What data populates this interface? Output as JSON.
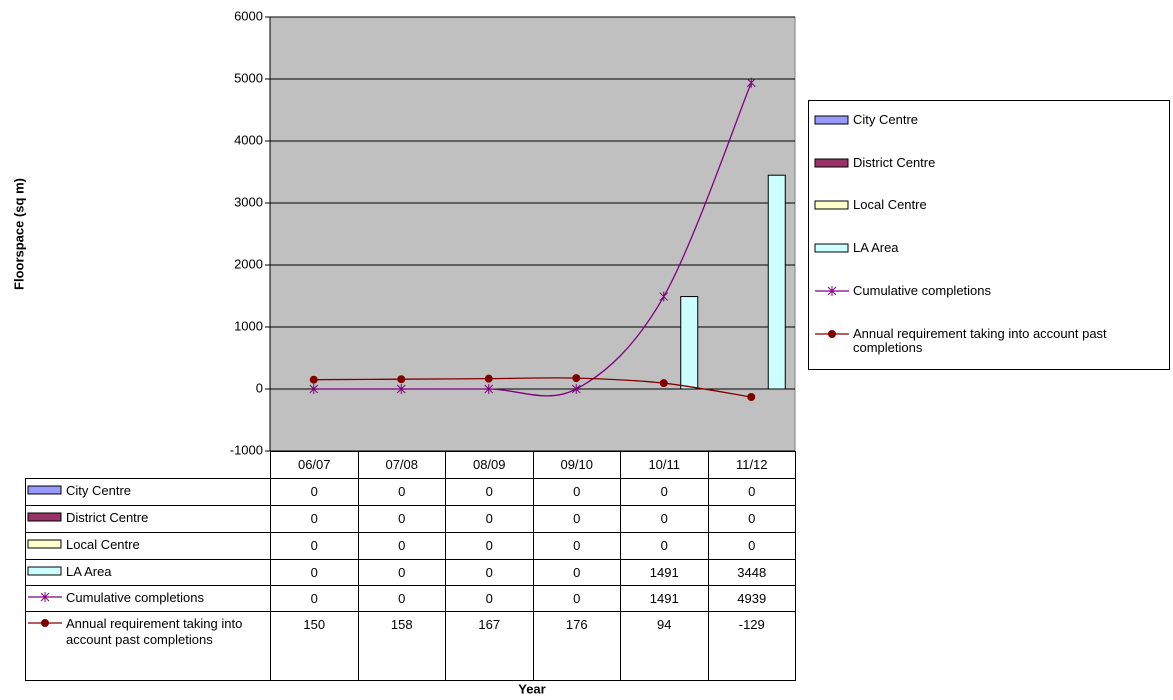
{
  "chart_data": {
    "type": "bar",
    "y_label": "Floorspace (sq m)",
    "x_label": "Year",
    "categories": [
      "06/07",
      "07/08",
      "08/09",
      "09/10",
      "10/11",
      "11/12"
    ],
    "series": [
      {
        "name": "City Centre",
        "type": "bar",
        "color": "#9999ff",
        "values": [
          0,
          0,
          0,
          0,
          0,
          0
        ]
      },
      {
        "name": "District Centre",
        "type": "bar",
        "color": "#993366",
        "values": [
          0,
          0,
          0,
          0,
          0,
          0
        ]
      },
      {
        "name": "Local Centre",
        "type": "bar",
        "color": "#ffffcc",
        "values": [
          0,
          0,
          0,
          0,
          0,
          0
        ]
      },
      {
        "name": "LA Area",
        "type": "bar",
        "color": "#ccffff",
        "values": [
          0,
          0,
          0,
          0,
          1491,
          3448
        ]
      },
      {
        "name": "Cumulative completions",
        "type": "line",
        "marker": "star",
        "color": "#800080",
        "values": [
          0,
          0,
          0,
          0,
          1491,
          4939
        ]
      },
      {
        "name": "Annual requirement taking into account past completions",
        "type": "line",
        "marker": "circle",
        "color": "#800000",
        "values": [
          150,
          158,
          167,
          176,
          94,
          -129
        ]
      }
    ],
    "ylim": [
      -1000,
      6000
    ],
    "yticks": [
      -1000,
      0,
      1000,
      2000,
      3000,
      4000,
      5000,
      6000
    ],
    "grid": true,
    "legend": "right",
    "plot_background": "#c0c0c0"
  }
}
